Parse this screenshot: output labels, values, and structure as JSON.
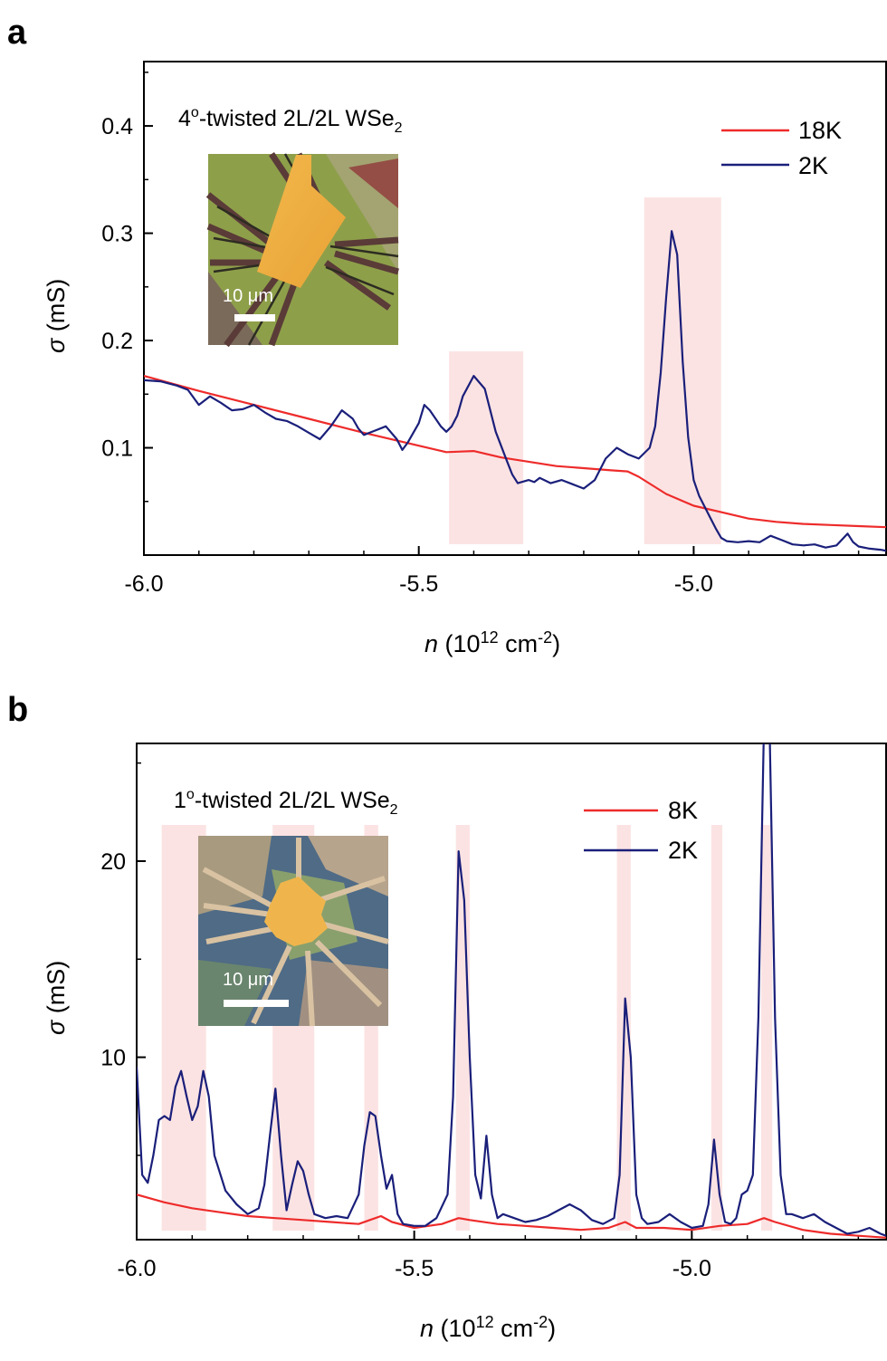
{
  "colors": {
    "high_T": "#ee2b2b",
    "low_T": "#1a1f7a",
    "highlight": "#fbdada"
  },
  "chart_data": [
    {
      "type": "line",
      "panel": "a",
      "sample_label": {
        "prefix": "4",
        "sup": "o",
        "mid": "-twisted 2L/2L WSe",
        "sub": "2"
      },
      "xlabel": {
        "var": "n",
        "pre": " (10",
        "sup1": "12",
        "mid": " cm",
        "sup2": "-2",
        "post": ")"
      },
      "ylabel": {
        "var": "σ",
        "rest": " (mS)"
      },
      "xlim": [
        -6.0,
        -4.65
      ],
      "ylim": [
        0.0,
        0.46
      ],
      "xticks": [
        "-6.0",
        "-5.5",
        "-5.0"
      ],
      "yticks": [
        "0.1",
        "0.2",
        "0.3",
        "0.4"
      ],
      "highlights": [
        [
          -5.445,
          -5.31
        ],
        [
          -5.09,
          -4.95
        ]
      ],
      "inset": {
        "scale_label": "10 μm",
        "image": "optical-micrograph"
      },
      "series": [
        {
          "name": "18K",
          "color": "#ee2b2b",
          "x": [
            -6.0,
            -5.9,
            -5.8,
            -5.7,
            -5.6,
            -5.5,
            -5.45,
            -5.4,
            -5.35,
            -5.3,
            -5.25,
            -5.2,
            -5.15,
            -5.12,
            -5.1,
            -5.05,
            -5.0,
            -4.95,
            -4.9,
            -4.85,
            -4.8,
            -4.75,
            -4.7,
            -4.65
          ],
          "y": [
            0.167,
            0.153,
            0.14,
            0.127,
            0.114,
            0.102,
            0.096,
            0.097,
            0.091,
            0.087,
            0.083,
            0.081,
            0.079,
            0.078,
            0.073,
            0.057,
            0.046,
            0.04,
            0.034,
            0.031,
            0.029,
            0.028,
            0.027,
            0.026
          ]
        },
        {
          "name": "2K",
          "color": "#1a1f7a",
          "x": [
            -6.0,
            -5.97,
            -5.94,
            -5.92,
            -5.9,
            -5.88,
            -5.86,
            -5.84,
            -5.82,
            -5.8,
            -5.78,
            -5.76,
            -5.74,
            -5.72,
            -5.7,
            -5.68,
            -5.66,
            -5.64,
            -5.62,
            -5.61,
            -5.6,
            -5.58,
            -5.56,
            -5.54,
            -5.53,
            -5.52,
            -5.5,
            -5.49,
            -5.48,
            -5.46,
            -5.45,
            -5.44,
            -5.43,
            -5.42,
            -5.4,
            -5.38,
            -5.36,
            -5.34,
            -5.33,
            -5.32,
            -5.3,
            -5.29,
            -5.28,
            -5.26,
            -5.24,
            -5.22,
            -5.2,
            -5.18,
            -5.16,
            -5.14,
            -5.12,
            -5.1,
            -5.08,
            -5.07,
            -5.06,
            -5.05,
            -5.04,
            -5.03,
            -5.02,
            -5.01,
            -5.0,
            -4.99,
            -4.98,
            -4.97,
            -4.96,
            -4.95,
            -4.94,
            -4.92,
            -4.9,
            -4.88,
            -4.86,
            -4.84,
            -4.82,
            -4.8,
            -4.78,
            -4.76,
            -4.74,
            -4.72,
            -4.71,
            -4.7,
            -4.68,
            -4.66,
            -4.65
          ],
          "y": [
            0.163,
            0.162,
            0.158,
            0.154,
            0.14,
            0.148,
            0.142,
            0.135,
            0.136,
            0.14,
            0.133,
            0.127,
            0.125,
            0.12,
            0.114,
            0.108,
            0.12,
            0.135,
            0.127,
            0.118,
            0.112,
            0.116,
            0.12,
            0.108,
            0.098,
            0.105,
            0.123,
            0.14,
            0.135,
            0.12,
            0.115,
            0.12,
            0.13,
            0.148,
            0.167,
            0.155,
            0.115,
            0.088,
            0.075,
            0.067,
            0.07,
            0.068,
            0.072,
            0.067,
            0.07,
            0.066,
            0.062,
            0.07,
            0.09,
            0.1,
            0.094,
            0.09,
            0.1,
            0.12,
            0.17,
            0.24,
            0.302,
            0.28,
            0.18,
            0.11,
            0.07,
            0.055,
            0.045,
            0.035,
            0.025,
            0.016,
            0.013,
            0.012,
            0.013,
            0.012,
            0.018,
            0.014,
            0.01,
            0.009,
            0.01,
            0.007,
            0.009,
            0.02,
            0.012,
            0.008,
            0.006,
            0.005,
            0.004
          ]
        }
      ]
    },
    {
      "type": "line",
      "panel": "b",
      "sample_label": {
        "prefix": "1",
        "sup": "o",
        "mid": "-twisted 2L/2L WSe",
        "sub": "2"
      },
      "xlabel": {
        "var": "n",
        "pre": " (10",
        "sup1": "12",
        "mid": " cm",
        "sup2": "-2",
        "post": ")"
      },
      "ylabel": {
        "var": "σ",
        "rest": " (mS)"
      },
      "xlim": [
        -6.0,
        -4.65
      ],
      "ylim": [
        0.7,
        26.0
      ],
      "xticks": [
        "-6.0",
        "-5.5",
        "-5.0"
      ],
      "yticks": [
        "10",
        "20"
      ],
      "highlights": [
        [
          -5.955,
          -5.875
        ],
        [
          -5.755,
          -5.68
        ],
        [
          -5.59,
          -5.565
        ],
        [
          -5.425,
          -5.4
        ],
        [
          -5.135,
          -5.11
        ],
        [
          -4.965,
          -4.945
        ],
        [
          -4.875,
          -4.855
        ]
      ],
      "inset": {
        "scale_label": "10 μm",
        "image": "optical-micrograph"
      },
      "series": [
        {
          "name": "8K",
          "color": "#ee2b2b",
          "x": [
            -6.0,
            -5.95,
            -5.9,
            -5.85,
            -5.8,
            -5.75,
            -5.7,
            -5.65,
            -5.6,
            -5.58,
            -5.56,
            -5.54,
            -5.5,
            -5.45,
            -5.42,
            -5.4,
            -5.35,
            -5.3,
            -5.25,
            -5.2,
            -5.15,
            -5.12,
            -5.1,
            -5.05,
            -5.0,
            -4.95,
            -4.9,
            -4.87,
            -4.85,
            -4.8,
            -4.75,
            -4.7,
            -4.65
          ],
          "y": [
            3.0,
            2.6,
            2.3,
            2.1,
            1.9,
            1.8,
            1.7,
            1.6,
            1.5,
            1.7,
            1.9,
            1.6,
            1.3,
            1.5,
            1.8,
            1.7,
            1.5,
            1.4,
            1.3,
            1.2,
            1.3,
            1.6,
            1.3,
            1.3,
            1.2,
            1.4,
            1.5,
            1.8,
            1.6,
            1.2,
            1.0,
            0.9,
            0.8
          ]
        },
        {
          "name": "2K",
          "color": "#1a1f7a",
          "x": [
            -6.0,
            -5.99,
            -5.98,
            -5.97,
            -5.96,
            -5.95,
            -5.94,
            -5.93,
            -5.92,
            -5.91,
            -5.9,
            -5.89,
            -5.88,
            -5.87,
            -5.86,
            -5.84,
            -5.82,
            -5.8,
            -5.78,
            -5.77,
            -5.76,
            -5.75,
            -5.74,
            -5.73,
            -5.72,
            -5.71,
            -5.7,
            -5.69,
            -5.68,
            -5.66,
            -5.64,
            -5.62,
            -5.6,
            -5.59,
            -5.58,
            -5.57,
            -5.56,
            -5.55,
            -5.54,
            -5.53,
            -5.52,
            -5.5,
            -5.48,
            -5.46,
            -5.44,
            -5.43,
            -5.42,
            -5.41,
            -5.4,
            -5.39,
            -5.38,
            -5.37,
            -5.36,
            -5.35,
            -5.34,
            -5.32,
            -5.3,
            -5.28,
            -5.26,
            -5.24,
            -5.22,
            -5.2,
            -5.18,
            -5.16,
            -5.14,
            -5.13,
            -5.12,
            -5.11,
            -5.1,
            -5.09,
            -5.08,
            -5.06,
            -5.04,
            -5.02,
            -5.0,
            -4.98,
            -4.97,
            -4.96,
            -4.95,
            -4.94,
            -4.93,
            -4.92,
            -4.91,
            -4.9,
            -4.89,
            -4.88,
            -4.87,
            -4.86,
            -4.85,
            -4.84,
            -4.83,
            -4.82,
            -4.8,
            -4.78,
            -4.76,
            -4.74,
            -4.72,
            -4.7,
            -4.68,
            -4.66,
            -4.65
          ],
          "y": [
            9.5,
            4.0,
            3.6,
            5.0,
            6.8,
            7.0,
            6.8,
            8.5,
            9.3,
            8.0,
            6.8,
            7.5,
            9.3,
            8.0,
            5.0,
            3.2,
            2.5,
            2.0,
            2.3,
            3.5,
            6.0,
            8.4,
            5.0,
            2.2,
            3.5,
            4.7,
            4.2,
            3.0,
            2.0,
            1.8,
            1.9,
            1.8,
            3.0,
            5.5,
            7.2,
            7.0,
            5.0,
            3.3,
            4.0,
            2.0,
            1.5,
            1.4,
            1.4,
            1.8,
            3.0,
            8.0,
            20.5,
            18.0,
            10.0,
            4.0,
            2.8,
            6.0,
            3.0,
            1.8,
            2.0,
            1.8,
            1.6,
            1.7,
            1.9,
            2.2,
            2.5,
            2.2,
            1.7,
            1.5,
            1.8,
            4.0,
            13.0,
            10.0,
            3.0,
            1.8,
            1.5,
            1.6,
            2.0,
            1.6,
            1.3,
            1.4,
            2.5,
            5.8,
            3.0,
            1.6,
            1.5,
            1.8,
            3.0,
            3.2,
            4.0,
            12.0,
            27.0,
            27.0,
            12.0,
            4.0,
            2.0,
            2.0,
            1.8,
            2.0,
            1.6,
            1.3,
            1.0,
            1.1,
            1.3,
            1.0,
            0.9
          ]
        }
      ]
    }
  ]
}
